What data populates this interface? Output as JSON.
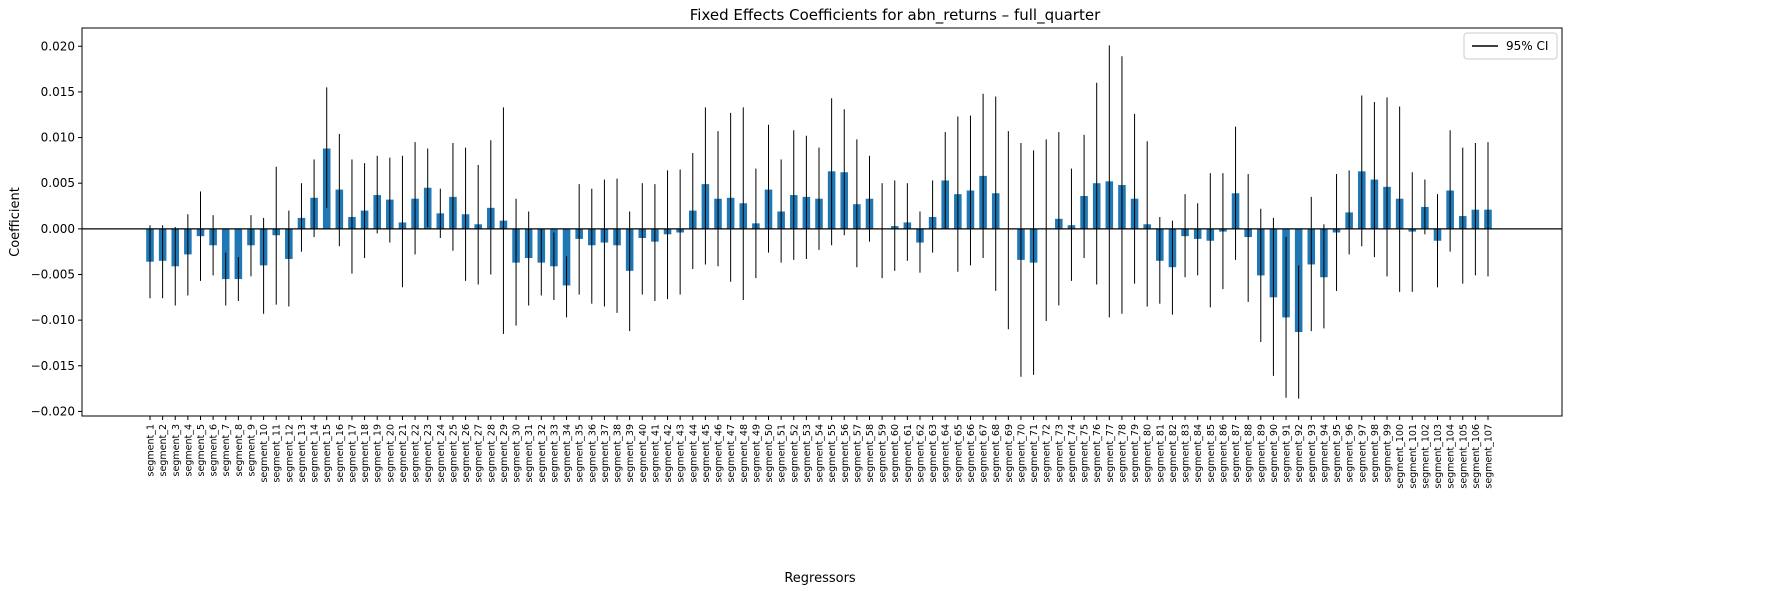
{
  "chart_data": {
    "type": "bar",
    "title": "Fixed Effects Coefficients for abn_returns – full_quarter",
    "xlabel": "Regressors",
    "ylabel": "Coefficient",
    "ylim": [
      -0.0205,
      0.022
    ],
    "yticks": [
      -0.02,
      -0.015,
      -0.01,
      -0.005,
      0.0,
      0.005,
      0.01,
      0.015,
      0.02
    ],
    "ytick_labels": [
      "−0.020",
      "−0.015",
      "−0.010",
      "−0.005",
      "0.000",
      "0.005",
      "0.010",
      "0.015",
      "0.020"
    ],
    "bar_color": "#1f77b4",
    "errorbar_color": "#000000",
    "zero_line": true,
    "grid": false,
    "legend": {
      "entries": [
        "95% CI"
      ],
      "placement": "top-right"
    },
    "categories": [
      "segment_1",
      "segment_2",
      "segment_3",
      "segment_4",
      "segment_5",
      "segment_6",
      "segment_7",
      "segment_8",
      "segment_9",
      "segment_10",
      "segment_11",
      "segment_12",
      "segment_13",
      "segment_14",
      "segment_15",
      "segment_16",
      "segment_17",
      "segment_18",
      "segment_19",
      "segment_20",
      "segment_21",
      "segment_22",
      "segment_23",
      "segment_24",
      "segment_25",
      "segment_26",
      "segment_27",
      "segment_28",
      "segment_29",
      "segment_30",
      "segment_31",
      "segment_32",
      "segment_33",
      "segment_34",
      "segment_35",
      "segment_36",
      "segment_37",
      "segment_38",
      "segment_39",
      "segment_40",
      "segment_41",
      "segment_42",
      "segment_43",
      "segment_44",
      "segment_45",
      "segment_46",
      "segment_47",
      "segment_48",
      "segment_49",
      "segment_50",
      "segment_51",
      "segment_52",
      "segment_53",
      "segment_54",
      "segment_55",
      "segment_56",
      "segment_57",
      "segment_58",
      "segment_59",
      "segment_60",
      "segment_61",
      "segment_62",
      "segment_63",
      "segment_64",
      "segment_65",
      "segment_66",
      "segment_67",
      "segment_68",
      "segment_69",
      "segment_70",
      "segment_71",
      "segment_72",
      "segment_73",
      "segment_74",
      "segment_75",
      "segment_76",
      "segment_77",
      "segment_78",
      "segment_79",
      "segment_80",
      "segment_81",
      "segment_82",
      "segment_83",
      "segment_84",
      "segment_85",
      "segment_86",
      "segment_87",
      "segment_88",
      "segment_89",
      "segment_90",
      "segment_91",
      "segment_92",
      "segment_93",
      "segment_94",
      "segment_95",
      "segment_96",
      "segment_97",
      "segment_98",
      "segment_99",
      "segment_100",
      "segment_101",
      "segment_102",
      "segment_103",
      "segment_104",
      "segment_105",
      "segment_106",
      "segment_107"
    ],
    "values": [
      -0.0036,
      -0.0035,
      -0.0041,
      -0.0028,
      -0.0008,
      -0.0018,
      -0.0055,
      -0.0055,
      -0.0018,
      -0.004,
      -0.0007,
      -0.0033,
      0.0012,
      0.0034,
      0.0088,
      0.0043,
      0.0013,
      0.002,
      0.0037,
      0.0032,
      0.0007,
      0.0033,
      0.0045,
      0.0017,
      0.0035,
      0.0016,
      0.0005,
      0.0023,
      0.0009,
      -0.0037,
      -0.0032,
      -0.0037,
      -0.0041,
      -0.0062,
      -0.0011,
      -0.0018,
      -0.0015,
      -0.0018,
      -0.0046,
      -0.001,
      -0.0014,
      -0.0006,
      -0.0004,
      0.002,
      0.0049,
      0.0033,
      0.0034,
      0.0028,
      0.0006,
      0.0043,
      0.0019,
      0.0037,
      0.0035,
      0.0033,
      0.0063,
      0.0062,
      0.0027,
      0.0033,
      0.0,
      0.0003,
      0.0007,
      -0.0015,
      0.0013,
      0.0053,
      0.0038,
      0.0042,
      0.0058,
      0.0039,
      0.0,
      -0.0034,
      -0.0037,
      0.0,
      0.0011,
      0.0004,
      0.0036,
      0.005,
      0.0052,
      0.0048,
      0.0033,
      0.0005,
      -0.0035,
      -0.0042,
      -0.0008,
      -0.0011,
      -0.0013,
      -0.0003,
      0.0039,
      -0.0009,
      -0.0051,
      -0.0075,
      -0.0097,
      -0.0113,
      -0.0039,
      -0.0053,
      -0.0004,
      0.0018,
      0.0063,
      0.0054,
      0.0046,
      0.0033,
      -0.0003,
      0.0024,
      -0.0013,
      0.0042,
      0.0014,
      0.0021,
      0.0021
    ],
    "ci_low": [
      -0.0076,
      -0.0076,
      -0.0084,
      -0.0073,
      -0.0057,
      -0.0051,
      -0.0084,
      -0.0079,
      -0.0052,
      -0.0093,
      -0.0083,
      -0.0085,
      -0.0025,
      -0.0009,
      0.0023,
      -0.0019,
      -0.0049,
      -0.0032,
      -0.0005,
      -0.0015,
      -0.0064,
      -0.0028,
      0.0002,
      -0.001,
      -0.0024,
      -0.0057,
      -0.0061,
      -0.005,
      -0.0115,
      -0.0106,
      -0.0084,
      -0.0073,
      -0.0078,
      -0.0097,
      -0.0072,
      -0.0082,
      -0.0085,
      -0.0092,
      -0.0112,
      -0.0072,
      -0.0079,
      -0.0077,
      -0.0072,
      -0.0044,
      -0.0039,
      -0.0041,
      -0.0058,
      -0.0078,
      -0.0054,
      -0.0026,
      -0.0037,
      -0.0034,
      -0.0033,
      -0.0023,
      -0.0018,
      -0.0007,
      -0.0042,
      -0.0014,
      -0.0054,
      -0.0046,
      -0.0035,
      -0.0048,
      -0.0026,
      0.0,
      -0.0047,
      -0.004,
      -0.0032,
      -0.0068,
      -0.011,
      -0.0162,
      -0.016,
      -0.0101,
      -0.0084,
      -0.0057,
      -0.0032,
      -0.0061,
      -0.0097,
      -0.0093,
      -0.006,
      -0.0085,
      -0.0082,
      -0.0094,
      -0.0053,
      -0.0051,
      -0.0086,
      -0.0066,
      -0.0034,
      -0.008,
      -0.0124,
      -0.0161,
      -0.0185,
      -0.0186,
      -0.0112,
      -0.0109,
      -0.0068,
      -0.0028,
      -0.0019,
      -0.0031,
      -0.0052,
      -0.0069,
      -0.0069,
      -0.0006,
      -0.0064,
      -0.0025,
      -0.006,
      -0.0051,
      -0.0052
    ],
    "ci_high": [
      0.0004,
      0.0004,
      0.0002,
      0.0016,
      0.0041,
      0.0015,
      -0.0026,
      -0.0031,
      0.0015,
      0.0012,
      0.0068,
      0.002,
      0.005,
      0.0076,
      0.0155,
      0.0104,
      0.0076,
      0.0072,
      0.008,
      0.0078,
      0.008,
      0.0095,
      0.0088,
      0.0044,
      0.0094,
      0.0089,
      0.007,
      0.0097,
      0.0133,
      0.0033,
      0.0019,
      0.0,
      -0.0004,
      -0.003,
      0.0049,
      0.0044,
      0.0054,
      0.0055,
      0.0019,
      0.005,
      0.0049,
      0.0064,
      0.0065,
      0.0083,
      0.0133,
      0.0107,
      0.0127,
      0.0133,
      0.0066,
      0.0114,
      0.0076,
      0.0108,
      0.0102,
      0.0089,
      0.0143,
      0.0131,
      0.0098,
      0.008,
      0.005,
      0.0053,
      0.005,
      0.0019,
      0.0053,
      0.0106,
      0.0123,
      0.0124,
      0.0148,
      0.0145,
      0.0107,
      0.0094,
      0.0086,
      0.0098,
      0.0106,
      0.0066,
      0.0103,
      0.016,
      0.0201,
      0.0189,
      0.0126,
      0.0096,
      0.0013,
      0.0009,
      0.0038,
      0.0028,
      0.0061,
      0.0061,
      0.0112,
      0.006,
      0.0022,
      0.0012,
      -0.0009,
      -0.004,
      0.0035,
      0.0005,
      0.006,
      0.0064,
      0.0146,
      0.0139,
      0.0144,
      0.0134,
      0.0062,
      0.0054,
      0.0038,
      0.0108,
      0.0089,
      0.0094,
      0.0095
    ]
  }
}
